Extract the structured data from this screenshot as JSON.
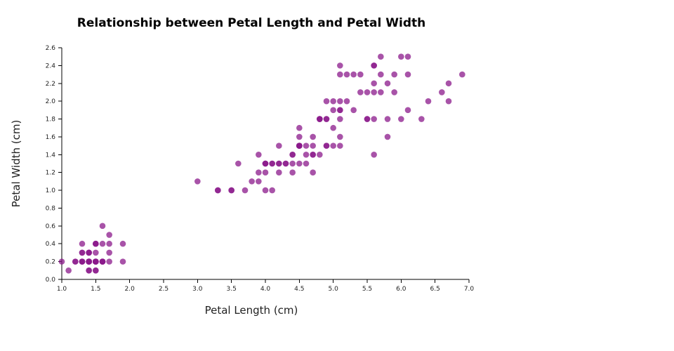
{
  "chart_data": {
    "type": "scatter",
    "title": "Relationship between Petal Length and Petal Width",
    "xlabel": "Petal Length (cm)",
    "ylabel": "Petal Width (cm)",
    "xlim": [
      1.0,
      7.0
    ],
    "ylim": [
      0.0,
      2.6
    ],
    "xticks": [
      "1.0",
      "1.5",
      "2.0",
      "2.5",
      "3.0",
      "3.5",
      "4.0",
      "4.5",
      "5.0",
      "5.5",
      "6.0",
      "6.5",
      "7.0"
    ],
    "yticks": [
      "0.0",
      "0.2",
      "0.4",
      "0.6",
      "0.8",
      "1.0",
      "1.2",
      "1.4",
      "1.6",
      "1.8",
      "2.0",
      "2.2",
      "2.4",
      "2.6"
    ],
    "grid": false,
    "color": "#8b1a8b",
    "opacity": 0.75,
    "points": [
      [
        1.4,
        0.2
      ],
      [
        1.4,
        0.2
      ],
      [
        1.3,
        0.2
      ],
      [
        1.5,
        0.2
      ],
      [
        1.4,
        0.2
      ],
      [
        1.7,
        0.4
      ],
      [
        1.4,
        0.3
      ],
      [
        1.5,
        0.2
      ],
      [
        1.4,
        0.2
      ],
      [
        1.5,
        0.1
      ],
      [
        1.5,
        0.2
      ],
      [
        1.6,
        0.2
      ],
      [
        1.4,
        0.1
      ],
      [
        1.1,
        0.1
      ],
      [
        1.2,
        0.2
      ],
      [
        1.5,
        0.4
      ],
      [
        1.3,
        0.4
      ],
      [
        1.4,
        0.3
      ],
      [
        1.7,
        0.3
      ],
      [
        1.5,
        0.3
      ],
      [
        1.7,
        0.2
      ],
      [
        1.5,
        0.4
      ],
      [
        1.0,
        0.2
      ],
      [
        1.7,
        0.5
      ],
      [
        1.9,
        0.2
      ],
      [
        1.6,
        0.2
      ],
      [
        1.6,
        0.4
      ],
      [
        1.5,
        0.2
      ],
      [
        1.4,
        0.2
      ],
      [
        1.6,
        0.2
      ],
      [
        1.6,
        0.2
      ],
      [
        1.5,
        0.4
      ],
      [
        1.5,
        0.1
      ],
      [
        1.4,
        0.2
      ],
      [
        1.5,
        0.2
      ],
      [
        1.2,
        0.2
      ],
      [
        1.3,
        0.2
      ],
      [
        1.4,
        0.1
      ],
      [
        1.3,
        0.2
      ],
      [
        1.5,
        0.2
      ],
      [
        1.3,
        0.3
      ],
      [
        1.3,
        0.3
      ],
      [
        1.3,
        0.2
      ],
      [
        1.6,
        0.6
      ],
      [
        1.9,
        0.4
      ],
      [
        1.4,
        0.3
      ],
      [
        1.6,
        0.2
      ],
      [
        1.4,
        0.2
      ],
      [
        1.5,
        0.2
      ],
      [
        1.4,
        0.2
      ],
      [
        4.7,
        1.4
      ],
      [
        4.5,
        1.5
      ],
      [
        4.9,
        1.5
      ],
      [
        4.0,
        1.3
      ],
      [
        4.6,
        1.5
      ],
      [
        4.5,
        1.3
      ],
      [
        4.7,
        1.6
      ],
      [
        3.3,
        1.0
      ],
      [
        4.6,
        1.3
      ],
      [
        3.9,
        1.4
      ],
      [
        3.5,
        1.0
      ],
      [
        4.2,
        1.5
      ],
      [
        4.0,
        1.0
      ],
      [
        4.7,
        1.4
      ],
      [
        3.6,
        1.3
      ],
      [
        4.4,
        1.4
      ],
      [
        4.5,
        1.5
      ],
      [
        4.1,
        1.0
      ],
      [
        4.5,
        1.5
      ],
      [
        3.9,
        1.1
      ],
      [
        4.8,
        1.8
      ],
      [
        4.0,
        1.3
      ],
      [
        4.9,
        1.5
      ],
      [
        4.7,
        1.2
      ],
      [
        4.3,
        1.3
      ],
      [
        4.4,
        1.4
      ],
      [
        4.8,
        1.4
      ],
      [
        5.0,
        1.7
      ],
      [
        4.5,
        1.5
      ],
      [
        3.5,
        1.0
      ],
      [
        3.8,
        1.1
      ],
      [
        3.7,
        1.0
      ],
      [
        3.9,
        1.2
      ],
      [
        5.1,
        1.6
      ],
      [
        4.5,
        1.5
      ],
      [
        4.5,
        1.6
      ],
      [
        4.7,
        1.5
      ],
      [
        4.4,
        1.3
      ],
      [
        4.1,
        1.3
      ],
      [
        4.0,
        1.3
      ],
      [
        4.4,
        1.2
      ],
      [
        4.6,
        1.4
      ],
      [
        4.0,
        1.2
      ],
      [
        3.3,
        1.0
      ],
      [
        4.2,
        1.3
      ],
      [
        4.2,
        1.2
      ],
      [
        4.2,
        1.3
      ],
      [
        4.3,
        1.3
      ],
      [
        3.0,
        1.1
      ],
      [
        4.1,
        1.3
      ],
      [
        6.0,
        2.5
      ],
      [
        5.1,
        1.9
      ],
      [
        5.9,
        2.1
      ],
      [
        5.6,
        1.8
      ],
      [
        5.8,
        2.2
      ],
      [
        6.6,
        2.1
      ],
      [
        4.5,
        1.7
      ],
      [
        6.3,
        1.8
      ],
      [
        5.8,
        1.8
      ],
      [
        6.1,
        2.5
      ],
      [
        5.1,
        2.0
      ],
      [
        5.3,
        1.9
      ],
      [
        5.5,
        2.1
      ],
      [
        5.0,
        2.0
      ],
      [
        5.1,
        2.4
      ],
      [
        5.3,
        2.3
      ],
      [
        5.5,
        1.8
      ],
      [
        6.7,
        2.2
      ],
      [
        6.9,
        2.3
      ],
      [
        5.0,
        1.5
      ],
      [
        5.7,
        2.3
      ],
      [
        4.9,
        2.0
      ],
      [
        6.7,
        2.0
      ],
      [
        4.9,
        1.8
      ],
      [
        5.7,
        2.1
      ],
      [
        6.0,
        1.8
      ],
      [
        4.8,
        1.8
      ],
      [
        4.9,
        1.8
      ],
      [
        5.6,
        2.1
      ],
      [
        5.8,
        1.6
      ],
      [
        6.1,
        1.9
      ],
      [
        6.4,
        2.0
      ],
      [
        5.6,
        2.2
      ],
      [
        5.1,
        1.5
      ],
      [
        5.6,
        1.4
      ],
      [
        6.1,
        2.3
      ],
      [
        5.6,
        2.4
      ],
      [
        5.5,
        1.8
      ],
      [
        4.8,
        1.8
      ],
      [
        5.4,
        2.1
      ],
      [
        5.6,
        2.4
      ],
      [
        5.1,
        2.3
      ],
      [
        5.1,
        1.9
      ],
      [
        5.9,
        2.3
      ],
      [
        5.7,
        2.5
      ],
      [
        5.2,
        2.3
      ],
      [
        5.0,
        1.9
      ],
      [
        5.2,
        2.0
      ],
      [
        5.4,
        2.3
      ],
      [
        5.1,
        1.8
      ]
    ]
  }
}
